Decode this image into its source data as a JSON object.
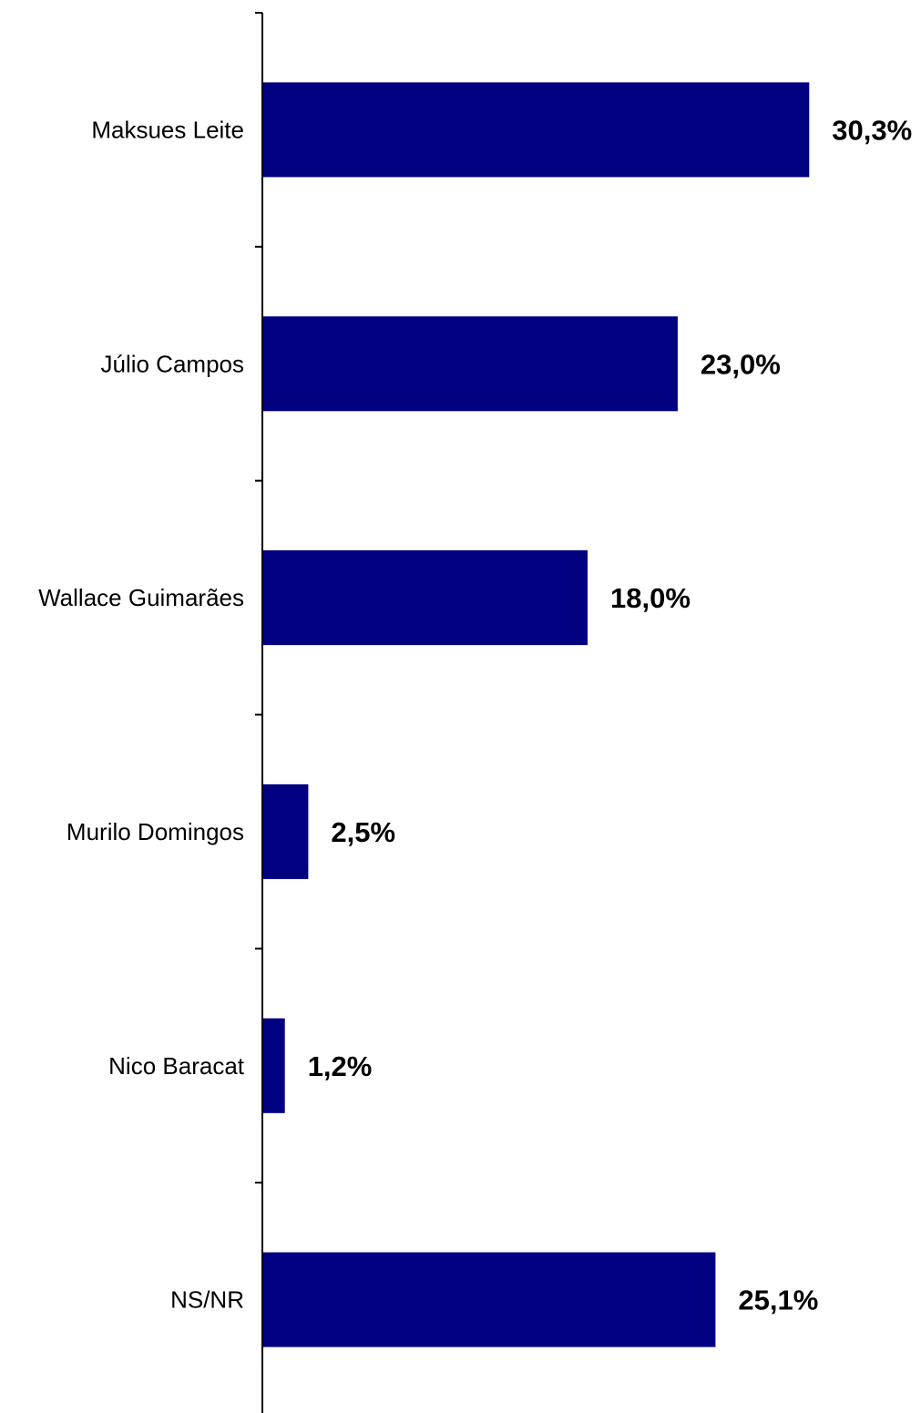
{
  "chart_data": {
    "type": "bar",
    "orientation": "horizontal",
    "categories": [
      "Maksues Leite",
      "Júlio Campos",
      "Wallace Guimarães",
      "Murilo Domingos",
      "Nico Baracat",
      "NS/NR"
    ],
    "values": [
      30.3,
      23.0,
      18.0,
      2.5,
      1.2,
      25.1
    ],
    "value_labels": [
      "30,3%",
      "23,0%",
      "18,0%",
      "2,5%",
      "1,2%",
      "25,1%"
    ],
    "title": "",
    "xlabel": "",
    "ylabel": "",
    "xlim": [
      0,
      36
    ],
    "grid": false,
    "legend": "none",
    "bar_color": "#000080",
    "axis_color": "#000000"
  }
}
